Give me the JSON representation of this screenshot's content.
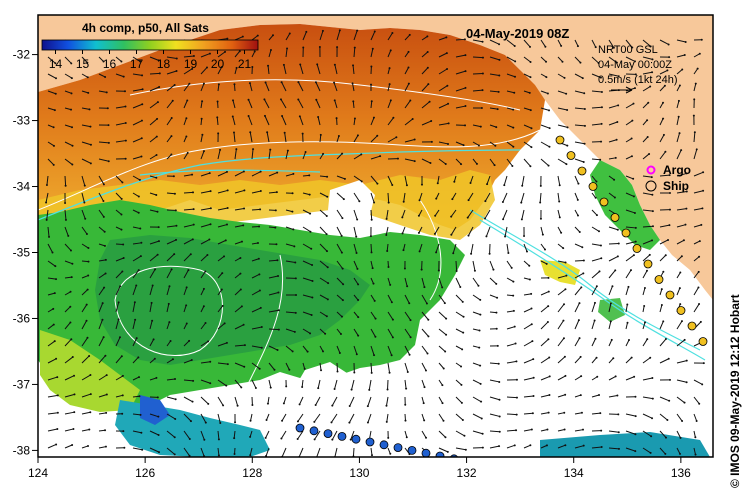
{
  "map": {
    "title_left": "4h comp, p50, All Sats",
    "title_right": "04-May-2019 08Z",
    "info_line1": "NRT00 GSL",
    "info_line2": "04-May 00:00Z",
    "info_line3": "0.5m/s (1kt 24h)",
    "credit": "© IMOS 09-May-2019 12:12 Hobart",
    "legend": [
      {
        "label": "Argo",
        "symbol": "magenta-star"
      },
      {
        "label": "Ship",
        "symbol": "open-circle"
      }
    ],
    "colorbar": {
      "ticks": [
        "14",
        "15",
        "16",
        "17",
        "18",
        "19",
        "20",
        "21"
      ],
      "min": 13.5,
      "max": 21.5
    },
    "lon_ticks": [
      "124",
      "126",
      "128",
      "130",
      "132",
      "134",
      "136"
    ],
    "lat_ticks": [
      "-32",
      "-33",
      "-34",
      "-35",
      "-36",
      "-37",
      "-38"
    ],
    "lon_range": [
      124,
      136.6
    ],
    "lat_range": [
      -38.1,
      -31.4
    ]
  },
  "colors": {
    "land": "#f7c89a",
    "frame": "#000000",
    "contour": "#ffffff",
    "cyan": "#4fe0e0",
    "sst_warm": "#e07010",
    "sst_mid": "#f0b020",
    "sst_green": "#30b030",
    "sst_cool": "#2ab0a0"
  }
}
